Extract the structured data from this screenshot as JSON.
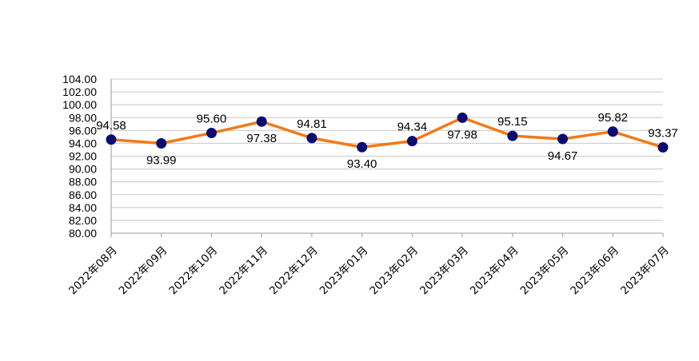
{
  "chart_data": {
    "type": "line",
    "title": "",
    "xlabel": "",
    "ylabel": "",
    "categories": [
      "2022年08月",
      "2022年09月",
      "2022年10月",
      "2022年11月",
      "2022年12月",
      "2023年01月",
      "2023年02月",
      "2023年03月",
      "2023年04月",
      "2023年05月",
      "2023年06月",
      "2023年07月"
    ],
    "series": [
      {
        "values": [
          94.58,
          93.99,
          95.6,
          97.38,
          94.81,
          93.4,
          94.34,
          97.98,
          95.15,
          94.67,
          95.82,
          93.37
        ],
        "value_labels": [
          "94.58",
          "93.99",
          "95.60",
          "97.38",
          "94.81",
          "93.40",
          "94.34",
          "97.98",
          "95.15",
          "94.67",
          "95.82",
          "93.37"
        ],
        "label_positions": [
          "above",
          "below",
          "above",
          "below",
          "above",
          "below",
          "above",
          "below",
          "above",
          "below",
          "above",
          "above"
        ]
      }
    ],
    "ylim": [
      80,
      104
    ],
    "yticks": [
      "80.00",
      "82.00",
      "84.00",
      "86.00",
      "88.00",
      "90.00",
      "92.00",
      "94.00",
      "96.00",
      "98.00",
      "100.00",
      "102.00",
      "104.00"
    ],
    "grid": true,
    "legend": "none",
    "colors": {
      "line": "#f07a1c",
      "marker": "#0c0c6e",
      "grid": "#c8c8c8",
      "axis": "#999999"
    }
  }
}
